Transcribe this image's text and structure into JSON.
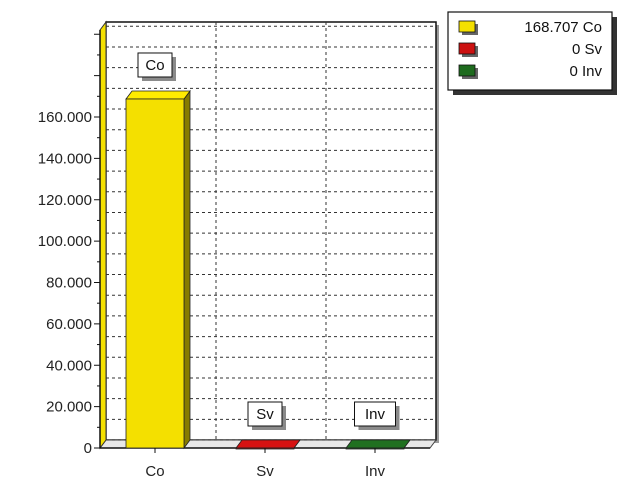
{
  "chart_data": {
    "type": "bar",
    "title": "",
    "xlabel": "",
    "ylabel": "",
    "categories": [
      "Co",
      "Sv",
      "Inv"
    ],
    "values": [
      168707,
      0,
      0
    ],
    "colors": [
      "#f4e000",
      "#cc1111",
      "#1e6b1e"
    ],
    "callouts": [
      "Co",
      "Sv",
      "Inv"
    ],
    "ylim": [
      0,
      200000
    ],
    "yticks": [
      0,
      20000,
      40000,
      60000,
      80000,
      100000,
      120000,
      140000,
      160000
    ],
    "ytick_labels": [
      "0",
      "20.000",
      "40.000",
      "60.000",
      "80.000",
      "100.000",
      "120.000",
      "140.000",
      "160.000"
    ],
    "grid": true,
    "legend_position": "top-right",
    "legend": [
      {
        "label": "168.707 Co",
        "color": "#f4e000"
      },
      {
        "label": "0 Sv",
        "color": "#cc1111"
      },
      {
        "label": "0 Inv",
        "color": "#1e6b1e"
      }
    ]
  }
}
